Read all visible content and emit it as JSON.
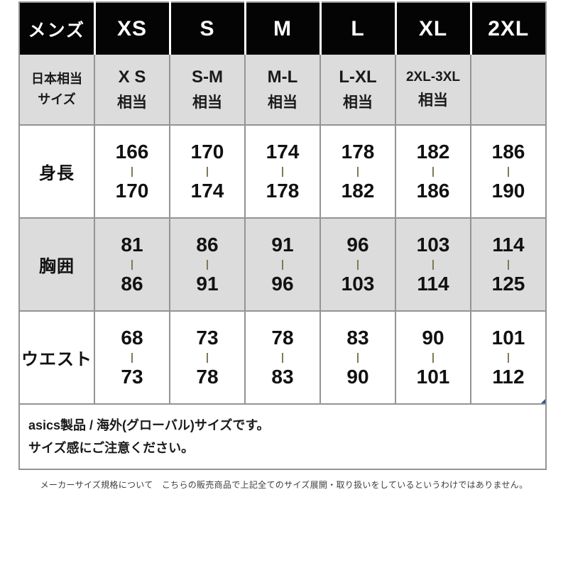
{
  "chart_data": {
    "type": "table",
    "title": "メンズ サイズ表 (asics)",
    "columns": [
      "メンズ",
      "XS",
      "S",
      "M",
      "L",
      "XL",
      "2XL"
    ],
    "rows": [
      [
        "日本相当サイズ",
        "X S 相当",
        "S-M 相当",
        "M-L 相当",
        "L-XL 相当",
        "2XL-3XL 相当",
        ""
      ],
      [
        "身長",
        "166-170",
        "170-174",
        "174-178",
        "178-182",
        "182-186",
        "186-190"
      ],
      [
        "胸囲",
        "81-86",
        "86-91",
        "91-96",
        "96-103",
        "103-114",
        "114-125"
      ],
      [
        "ウエスト",
        "68-73",
        "73-78",
        "78-83",
        "83-90",
        "90-101",
        "101-112"
      ]
    ],
    "note": "asics製品 / 海外(グローバル)サイズです。サイズ感にご注意ください。",
    "caption": "メーカーサイズ規格について　こちらの販売商品で上記全てのサイズ展開・取り扱いをしているというわけではありません。"
  },
  "table": {
    "header": [
      "メンズ",
      "XS",
      "S",
      "M",
      "L",
      "XL",
      "2XL"
    ],
    "jp_row": {
      "label_line1": "日本相当",
      "label_line2": "サイズ",
      "cells": [
        {
          "size": "X S",
          "suffix": "相当"
        },
        {
          "size": "S-M",
          "suffix": "相当"
        },
        {
          "size": "M-L",
          "suffix": "相当"
        },
        {
          "size": "L-XL",
          "suffix": "相当"
        },
        {
          "size": "2XL-3XL",
          "suffix": "相当"
        },
        {
          "size": "",
          "suffix": ""
        }
      ]
    },
    "range_separator": "|",
    "measurements": [
      {
        "label": "身長",
        "values": [
          [
            "166",
            "170"
          ],
          [
            "170",
            "174"
          ],
          [
            "174",
            "178"
          ],
          [
            "178",
            "182"
          ],
          [
            "182",
            "186"
          ],
          [
            "186",
            "190"
          ]
        ]
      },
      {
        "label": "胸囲",
        "values": [
          [
            "81",
            "86"
          ],
          [
            "86",
            "91"
          ],
          [
            "91",
            "96"
          ],
          [
            "96",
            "103"
          ],
          [
            "103",
            "114"
          ],
          [
            "114",
            "125"
          ]
        ]
      },
      {
        "label": "ウエスト",
        "values": [
          [
            "68",
            "73"
          ],
          [
            "73",
            "78"
          ],
          [
            "78",
            "83"
          ],
          [
            "83",
            "90"
          ],
          [
            "90",
            "101"
          ],
          [
            "101",
            "112"
          ]
        ]
      }
    ],
    "note_line1": "asics製品 / 海外(グローバル)サイズです。",
    "note_line2": "サイズ感にご注意ください。"
  },
  "caption": "メーカーサイズ規格について　こちらの販売商品で上記全てのサイズ展開・取り扱いをしているというわけではありません。",
  "colors": {
    "header_bg": "#040404",
    "header_text": "#ffffff",
    "alt_row_bg": "#dcdcdc",
    "grid_border": "#949494",
    "range_bar": "#7d7452",
    "corner_marker_blue": "#2e4f9e",
    "caption_text": "#3d3d3d"
  }
}
